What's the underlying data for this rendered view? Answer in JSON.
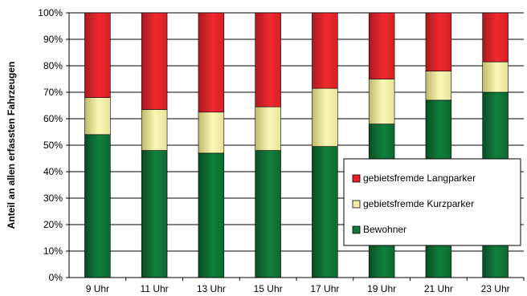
{
  "chart_data": {
    "type": "bar",
    "stacked": true,
    "categories": [
      "9 Uhr",
      "11 Uhr",
      "13 Uhr",
      "15 Uhr",
      "17 Uhr",
      "19 Uhr",
      "21 Uhr",
      "23 Uhr"
    ],
    "series": [
      {
        "name": "Bewohner",
        "color": "#0e7a3a",
        "values": [
          54,
          48,
          47,
          48,
          49.5,
          58,
          67,
          70
        ]
      },
      {
        "name": "gebietsfremde Kurzparker",
        "color": "#f3f0a4",
        "values": [
          14,
          15.5,
          15.5,
          16.5,
          22,
          17,
          11,
          11.5
        ]
      },
      {
        "name": "gebietsfremde Langparker",
        "color": "#e8202a",
        "values": [
          32,
          36.5,
          37.5,
          35.5,
          28.5,
          25,
          22,
          18.5
        ]
      }
    ],
    "ylabel": "Anteil an allen erfassten Fahrzeugen",
    "ylim": [
      0,
      100
    ],
    "yticks": [
      "0%",
      "10%",
      "20%",
      "30%",
      "40%",
      "50%",
      "60%",
      "70%",
      "80%",
      "90%",
      "100%"
    ],
    "legend": {
      "position": "right-center",
      "items": [
        "gebietsfremde Langparker",
        "gebietsfremde Kurzparker",
        "Bewohner"
      ]
    }
  }
}
